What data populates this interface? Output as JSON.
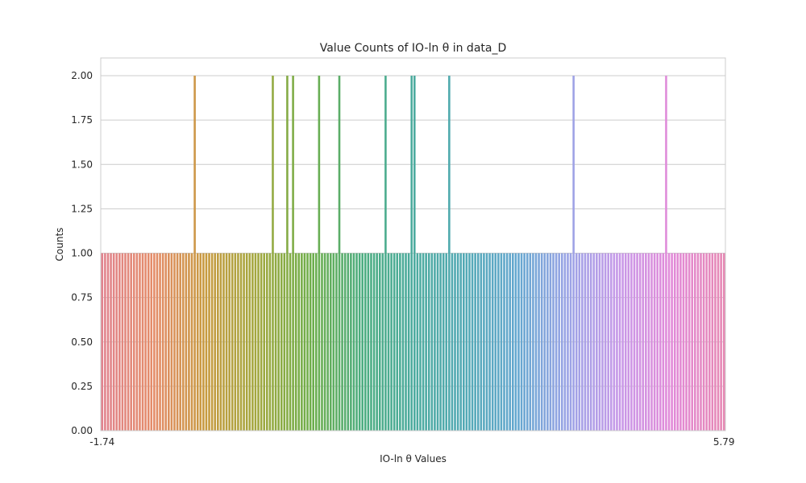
{
  "chart_data": {
    "type": "bar",
    "title": "Value Counts of IO-ln θ in data_D",
    "xlabel": "IO-ln θ Values",
    "ylabel": "Counts",
    "ylim": [
      0,
      2.1
    ],
    "yticks": [
      "0.00",
      "0.25",
      "0.50",
      "0.75",
      "1.00",
      "1.25",
      "1.50",
      "1.75",
      "2.00"
    ],
    "grid": "horizontal",
    "legend": "none",
    "x_first_label": "-1.74",
    "x_last_label": "5.79",
    "num_categories": 212,
    "values": [
      1,
      1,
      1,
      1,
      1,
      1,
      1,
      1,
      1,
      1,
      1,
      1,
      1,
      1,
      1,
      1,
      1,
      1,
      1,
      1,
      1,
      1,
      1,
      1,
      1,
      1,
      1,
      1,
      1,
      1,
      1,
      1,
      2,
      1,
      1,
      1,
      1,
      1,
      1,
      1,
      1,
      1,
      1,
      1,
      1,
      1,
      1,
      1,
      1,
      1,
      1,
      1,
      1,
      1,
      1,
      1,
      1,
      1,
      1,
      2,
      1,
      1,
      1,
      1,
      2,
      1,
      2,
      1,
      1,
      1,
      1,
      1,
      1,
      1,
      1,
      2,
      1,
      1,
      1,
      1,
      1,
      1,
      2,
      1,
      1,
      1,
      1,
      1,
      1,
      1,
      1,
      1,
      1,
      1,
      1,
      1,
      1,
      1,
      2,
      1,
      1,
      1,
      1,
      1,
      1,
      1,
      1,
      2,
      2,
      1,
      1,
      1,
      1,
      1,
      1,
      1,
      1,
      1,
      1,
      1,
      2,
      1,
      1,
      1,
      1,
      1,
      1,
      1,
      1,
      1,
      1,
      1,
      1,
      1,
      1,
      1,
      1,
      1,
      1,
      1,
      1,
      1,
      1,
      1,
      1,
      1,
      1,
      1,
      1,
      1,
      1,
      1,
      1,
      1,
      1,
      1,
      1,
      1,
      1,
      1,
      1,
      1,
      1,
      2,
      1,
      1,
      1,
      1,
      1,
      1,
      1,
      1,
      1,
      1,
      1,
      1,
      1,
      1,
      1,
      1,
      1,
      1,
      1,
      1,
      1,
      1,
      1,
      1,
      1,
      1,
      1,
      1,
      1,
      1,
      1,
      2,
      1,
      1,
      1,
      1,
      1,
      1,
      1,
      1,
      1,
      1,
      1,
      1,
      1,
      1,
      1,
      1,
      1,
      1,
      1,
      1
    ],
    "colors": {
      "spine": "#cccccc",
      "grid": "#cccccc",
      "text": "#262626",
      "palette": [
        "#e1838e",
        "#e48c68",
        "#c79a3f",
        "#a2a83f",
        "#6fae49",
        "#4cad7f",
        "#4cab9e",
        "#52a9b5",
        "#64a7cf",
        "#9ba3e6",
        "#c898e8",
        "#e28ad8",
        "#e688b4"
      ]
    }
  }
}
